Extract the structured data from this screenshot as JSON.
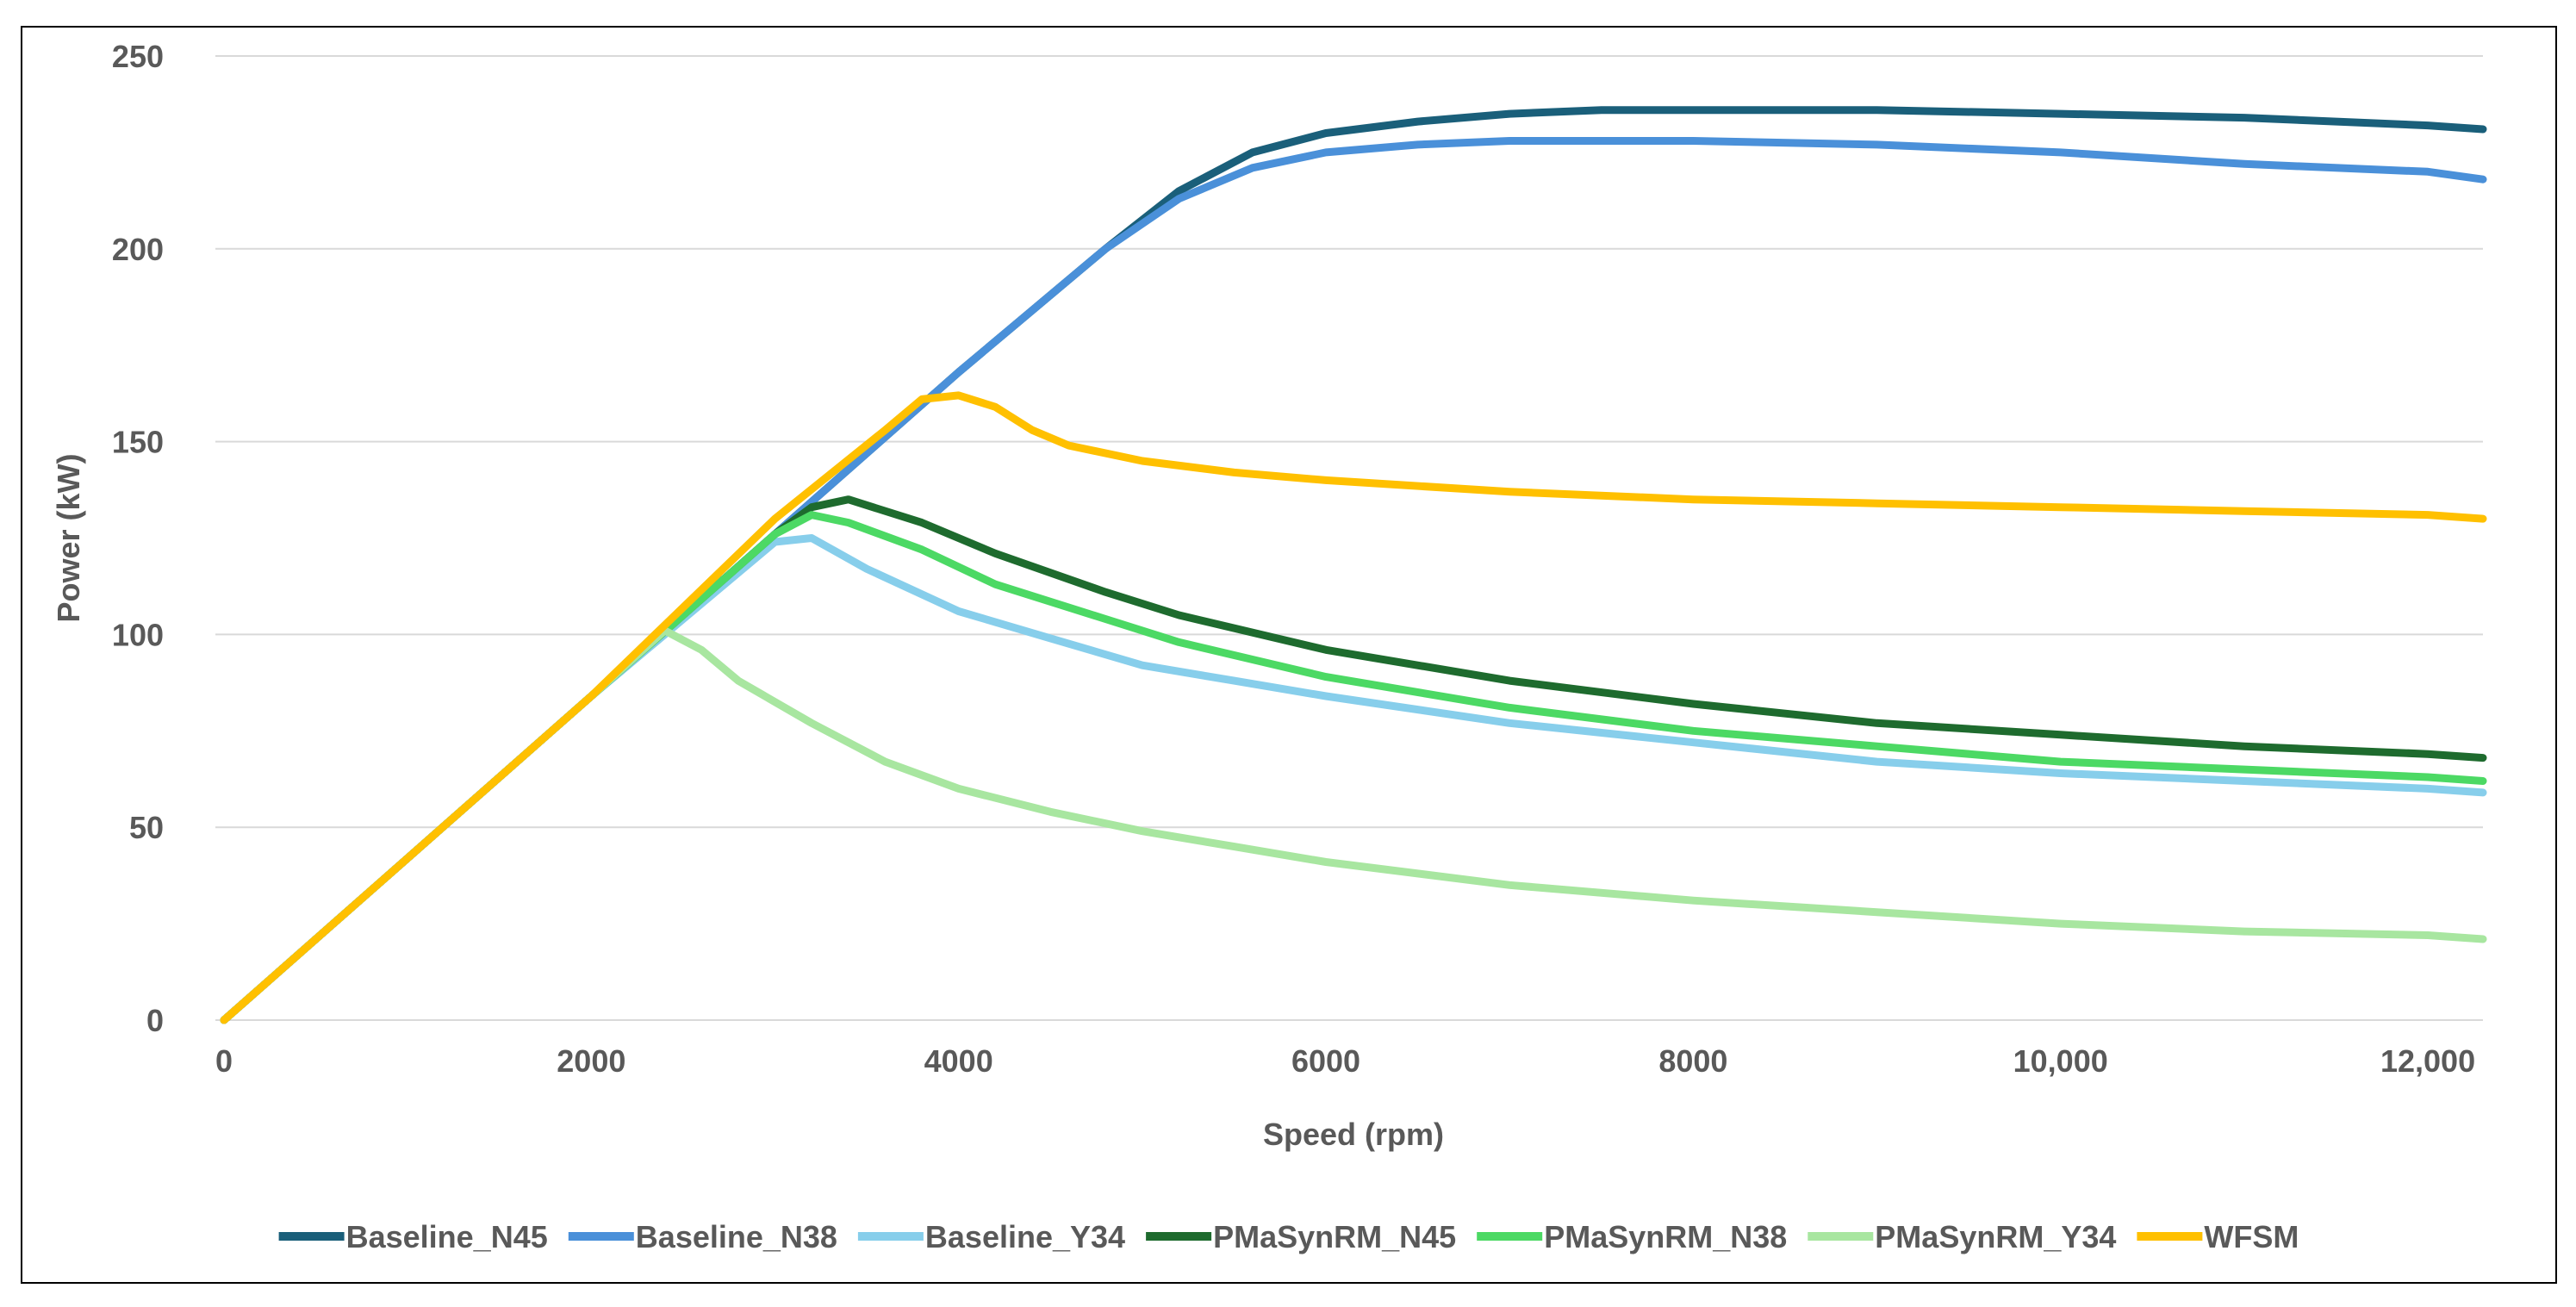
{
  "chart_data": {
    "type": "line",
    "title": "",
    "xlabel": "Speed (rpm)",
    "ylabel": "Power (kW)",
    "xlim": [
      0,
      12300
    ],
    "ylim": [
      0,
      250
    ],
    "grid": true,
    "legend_position": "bottom",
    "x_ticks": [
      0,
      2000,
      4000,
      6000,
      8000,
      10000,
      12000
    ],
    "x_tick_labels": [
      "0",
      "2000",
      "4000",
      "6000",
      "8000",
      "10,000",
      "12,000"
    ],
    "y_ticks": [
      0,
      50,
      100,
      150,
      200,
      250
    ],
    "y_tick_labels": [
      "0",
      "50",
      "100",
      "150",
      "200",
      "250"
    ],
    "series": [
      {
        "name": "Baseline_N45",
        "color": "#1a5f7a",
        "x": [
          0,
          1000,
          2000,
          3000,
          4000,
          4800,
          5200,
          5600,
          6000,
          6500,
          7000,
          7500,
          8000,
          9000,
          10000,
          11000,
          12000,
          12300
        ],
        "y": [
          0,
          42,
          84,
          126,
          168,
          200,
          215,
          225,
          230,
          233,
          235,
          236,
          236,
          236,
          235,
          234,
          232,
          231
        ]
      },
      {
        "name": "Baseline_N38",
        "color": "#4a90d9",
        "x": [
          0,
          1000,
          2000,
          3000,
          4000,
          4800,
          5200,
          5600,
          6000,
          6500,
          7000,
          7500,
          8000,
          9000,
          10000,
          11000,
          12000,
          12300
        ],
        "y": [
          0,
          42,
          84,
          126,
          168,
          200,
          213,
          221,
          225,
          227,
          228,
          228,
          228,
          227,
          225,
          222,
          220,
          218
        ]
      },
      {
        "name": "Baseline_Y34",
        "color": "#87ceeb",
        "x": [
          0,
          1000,
          2000,
          3000,
          3200,
          3500,
          4000,
          4500,
          5000,
          5500,
          6000,
          7000,
          8000,
          9000,
          10000,
          11000,
          12000,
          12300
        ],
        "y": [
          0,
          42,
          84,
          124,
          125,
          117,
          106,
          99,
          92,
          88,
          84,
          77,
          72,
          67,
          64,
          62,
          60,
          59
        ]
      },
      {
        "name": "PMaSynRM_N45",
        "color": "#1e6b2e",
        "x": [
          0,
          1000,
          2000,
          3000,
          3200,
          3400,
          3800,
          4200,
          4800,
          5200,
          6000,
          7000,
          8000,
          9000,
          10000,
          11000,
          12000,
          12300
        ],
        "y": [
          0,
          42,
          84,
          126,
          133,
          135,
          129,
          121,
          111,
          105,
          96,
          88,
          82,
          77,
          74,
          71,
          69,
          68
        ]
      },
      {
        "name": "PMaSynRM_N38",
        "color": "#4cd964",
        "x": [
          0,
          1000,
          2000,
          3000,
          3200,
          3400,
          3800,
          4200,
          4800,
          5200,
          6000,
          7000,
          8000,
          9000,
          10000,
          11000,
          12000,
          12300
        ],
        "y": [
          0,
          42,
          84,
          126,
          131,
          129,
          122,
          113,
          104,
          98,
          89,
          81,
          75,
          71,
          67,
          65,
          63,
          62
        ]
      },
      {
        "name": "PMaSynRM_Y34",
        "color": "#a8e6a0",
        "x": [
          0,
          1000,
          2000,
          2400,
          2600,
          2800,
          3200,
          3600,
          4000,
          4500,
          5000,
          5500,
          6000,
          7000,
          8000,
          9000,
          10000,
          11000,
          12000,
          12300
        ],
        "y": [
          0,
          42,
          84,
          101,
          96,
          88,
          77,
          67,
          60,
          54,
          49,
          45,
          41,
          35,
          31,
          28,
          25,
          23,
          22,
          21
        ]
      },
      {
        "name": "WFSM",
        "color": "#ffc000",
        "x": [
          0,
          1000,
          2000,
          3000,
          3600,
          3800,
          4000,
          4200,
          4400,
          4600,
          5000,
          5500,
          6000,
          7000,
          8000,
          9000,
          10000,
          11000,
          12000,
          12300
        ],
        "y": [
          0,
          42,
          84,
          130,
          153,
          161,
          162,
          159,
          153,
          149,
          145,
          142,
          140,
          137,
          135,
          134,
          133,
          132,
          131,
          130
        ]
      }
    ]
  }
}
